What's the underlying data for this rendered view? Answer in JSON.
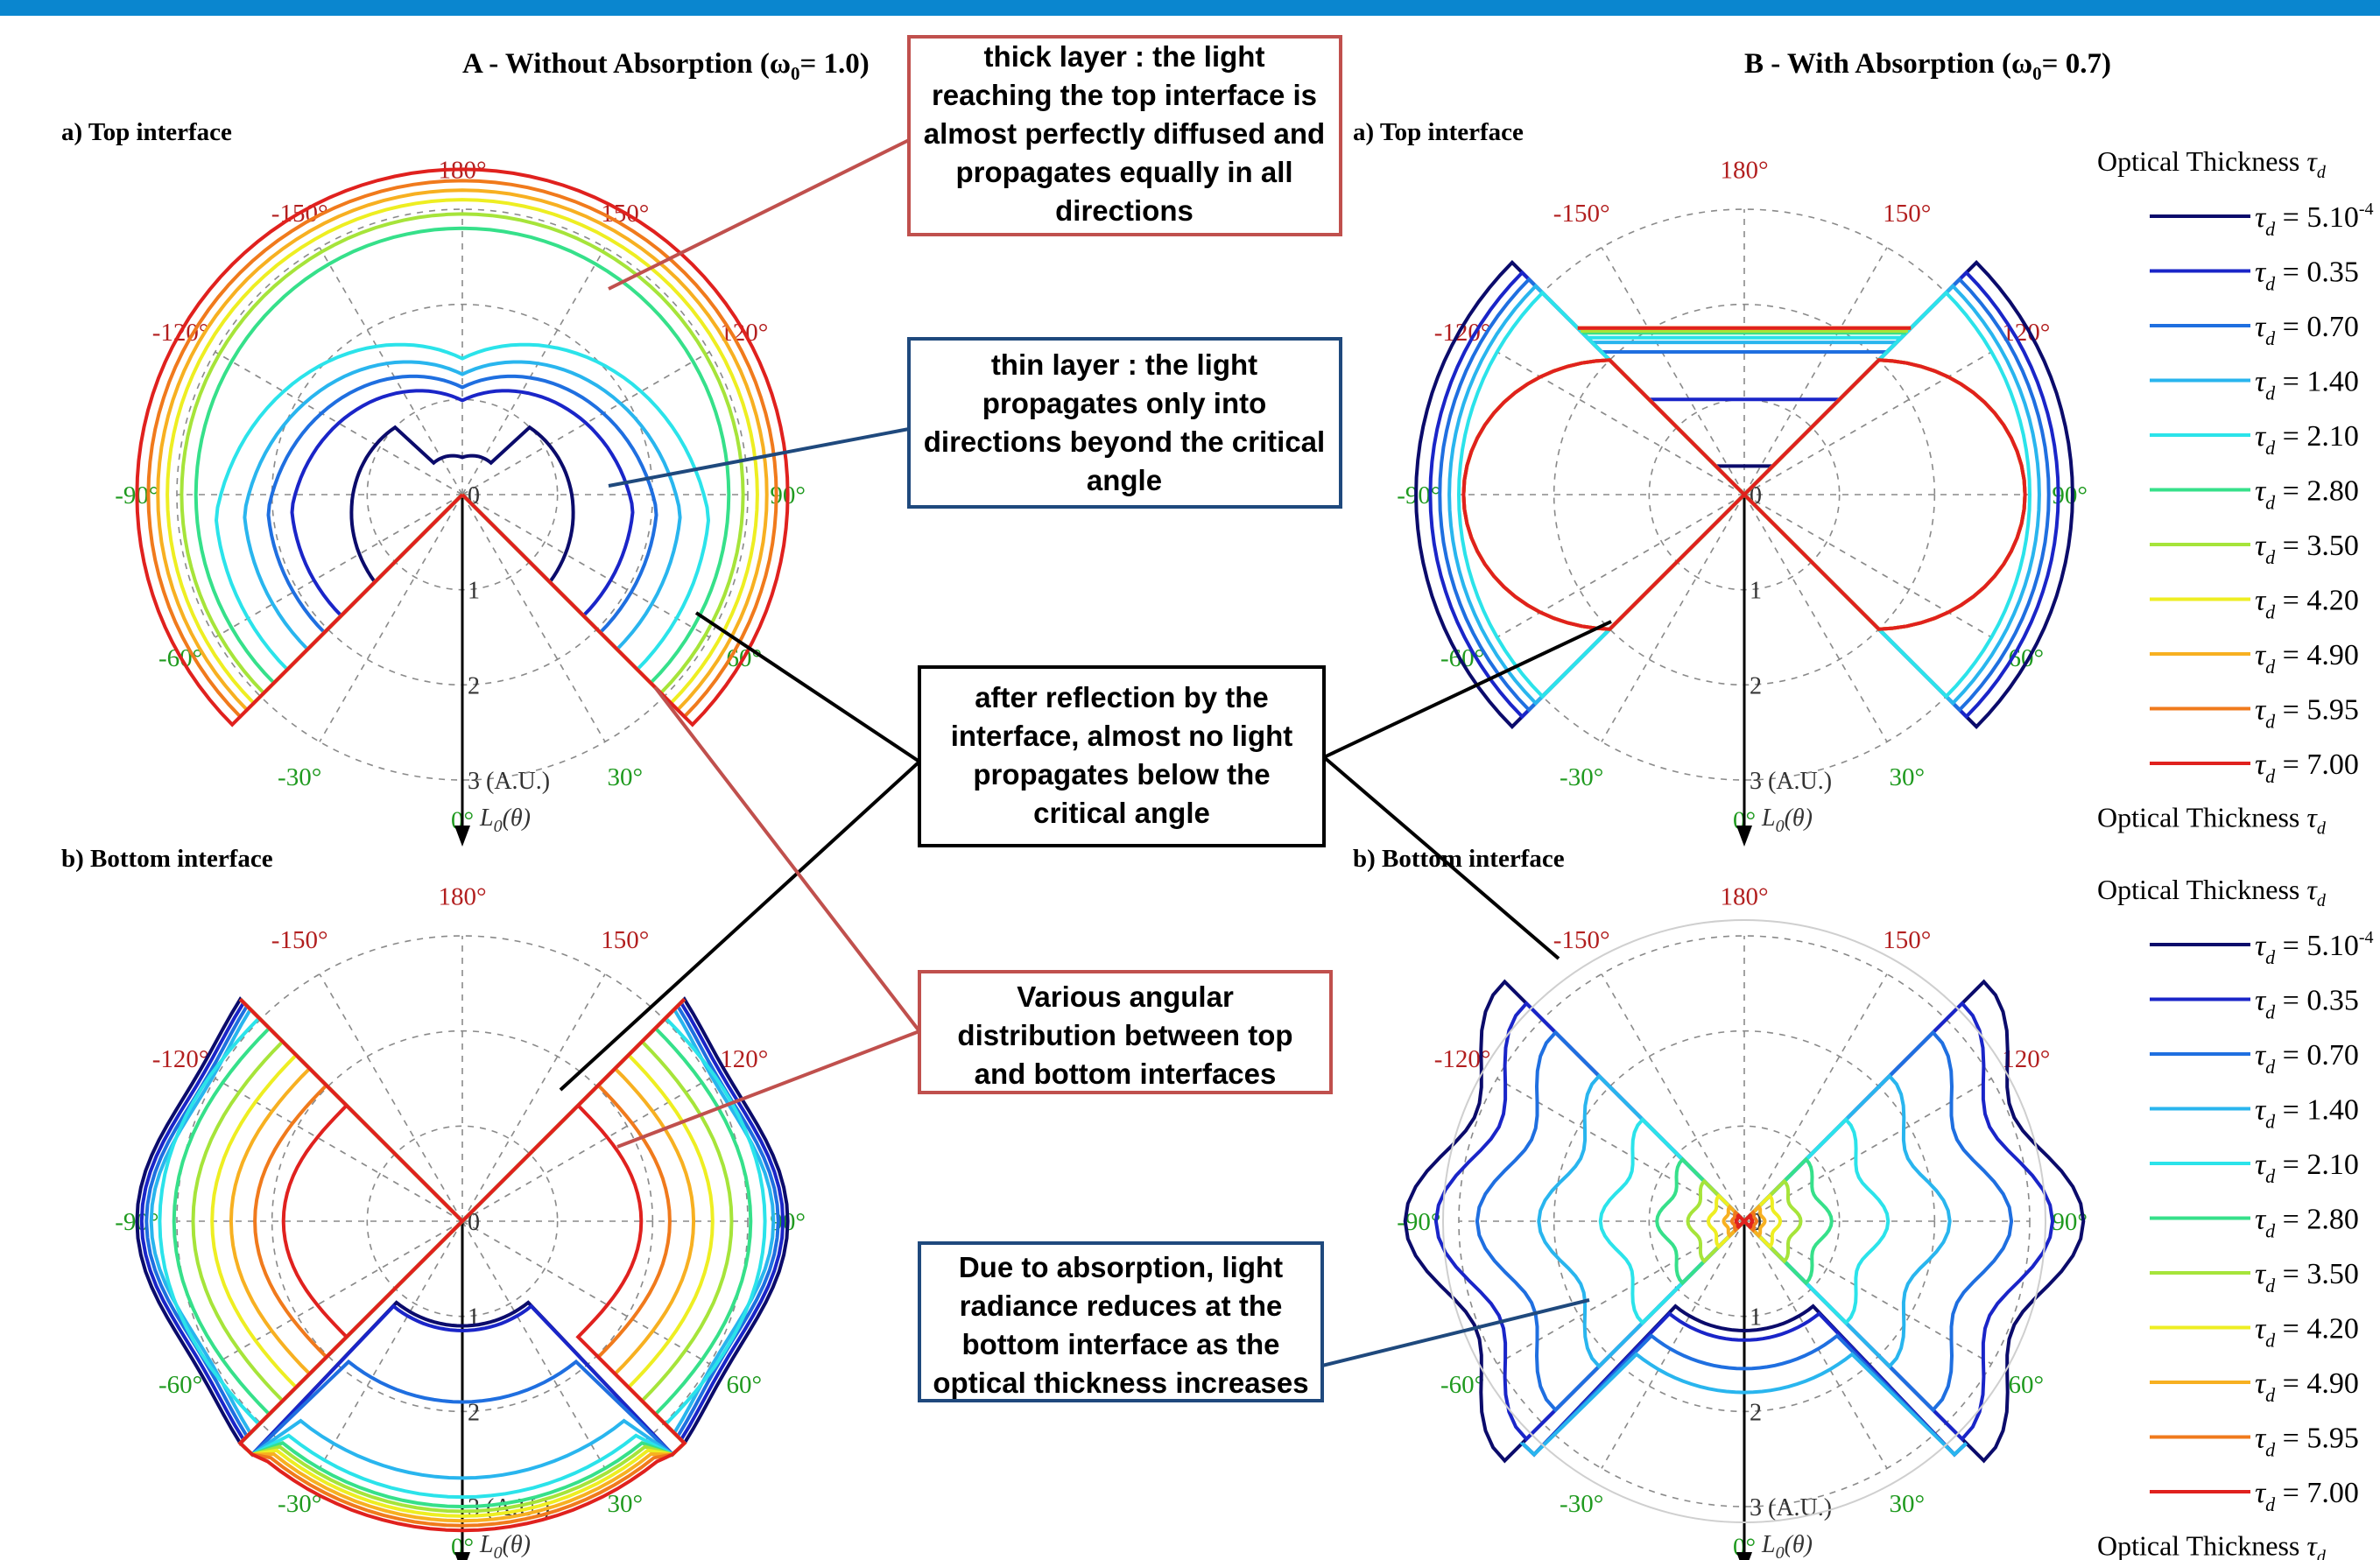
{
  "header": {
    "panel_a_title": "A - Without Absorption (ω",
    "panel_a_omega": "0",
    "panel_a_value": "= 1.0)",
    "panel_b_title": "B - With Absorption (ω",
    "panel_b_omega": "0",
    "panel_b_value": "= 0.7)"
  },
  "subplots": {
    "a_top": "a) Top interface",
    "a_bottom": "b) Bottom interface",
    "b_top": "a) Top interface",
    "b_bottom": "b) Bottom interface"
  },
  "angle_labels": [
    "180°",
    "-150°",
    "150°",
    "-120°",
    "120°",
    "-90°",
    "90°",
    "-60°",
    "60°",
    "-30°",
    "30°",
    "0°"
  ],
  "radial_labels": [
    "0",
    "1",
    "2",
    "3 (A.U.)"
  ],
  "radial_axis_label": "L",
  "radial_axis_sub": "0",
  "radial_axis_arg": "(θ)",
  "callouts": {
    "thick": [
      "thick layer : the light",
      "reaching the top interface is",
      "almost perfectly diffused and",
      "propagates equally in all",
      "directions"
    ],
    "thin": [
      "thin layer : the light",
      "propagates only into",
      "directions beyond the critical",
      "angle"
    ],
    "reflection": [
      "after reflection by the",
      "interface, almost no light",
      "propagates below the",
      "critical angle"
    ],
    "various": [
      "Various angular",
      "distribution between top",
      "and bottom interfaces"
    ],
    "absorption": [
      "Due to absorption, light",
      "radiance reduces at the",
      "bottom interface as the",
      "optical thickness increases"
    ]
  },
  "colors": {
    "banner": "#0a86cf",
    "callout_red": "#c0504d",
    "callout_blue": "#1f497d",
    "callout_black": "#000000"
  },
  "legend": {
    "title": "Optical Thickness",
    "symbol": "τ",
    "symbol_sub": "d",
    "entries": [
      {
        "label": "= 5.10",
        "sup": "-4",
        "color": "#0b0b6b"
      },
      {
        "label": "= 0.35",
        "sup": "",
        "color": "#1a25c8"
      },
      {
        "label": "= 0.70",
        "sup": "",
        "color": "#1f6fe0"
      },
      {
        "label": "= 1.40",
        "sup": "",
        "color": "#29b5ee"
      },
      {
        "label": "= 2.10",
        "sup": "",
        "color": "#2be3ea"
      },
      {
        "label": "= 2.80",
        "sup": "",
        "color": "#36e08a"
      },
      {
        "label": "= 3.50",
        "sup": "",
        "color": "#a6e43a"
      },
      {
        "label": "= 4.20",
        "sup": "",
        "color": "#eeee22"
      },
      {
        "label": "= 4.90",
        "sup": "",
        "color": "#f7b021"
      },
      {
        "label": "= 5.95",
        "sup": "",
        "color": "#f07a1c"
      },
      {
        "label": "= 7.00",
        "sup": "",
        "color": "#e0211e"
      }
    ]
  },
  "chart_data": {
    "type": "polar",
    "radial_range": [
      0,
      3
    ],
    "angular_ticks_deg": [
      180,
      -150,
      150,
      -120,
      120,
      -90,
      90,
      -60,
      60,
      -30,
      30,
      0
    ],
    "series_names": [
      "τd = 5.10-4",
      "τd = 0.35",
      "τd = 0.70",
      "τd = 1.40",
      "τd = 2.10",
      "τd = 2.80",
      "τd = 3.50",
      "τd = 4.20",
      "τd = 4.90",
      "τd = 5.95",
      "τd = 7.00"
    ],
    "panels": [
      {
        "panel": "A - Without Absorption (ω0 = 1.0)",
        "interface": "a) Top interface"
      },
      {
        "panel": "A - Without Absorption (ω0 = 1.0)",
        "interface": "b) Bottom interface"
      },
      {
        "panel": "B - With Absorption (ω0 = 0.7)",
        "interface": "a) Top interface"
      },
      {
        "panel": "B - With Absorption (ω0 = 0.7)",
        "interface": "b) Bottom interface"
      }
    ]
  }
}
